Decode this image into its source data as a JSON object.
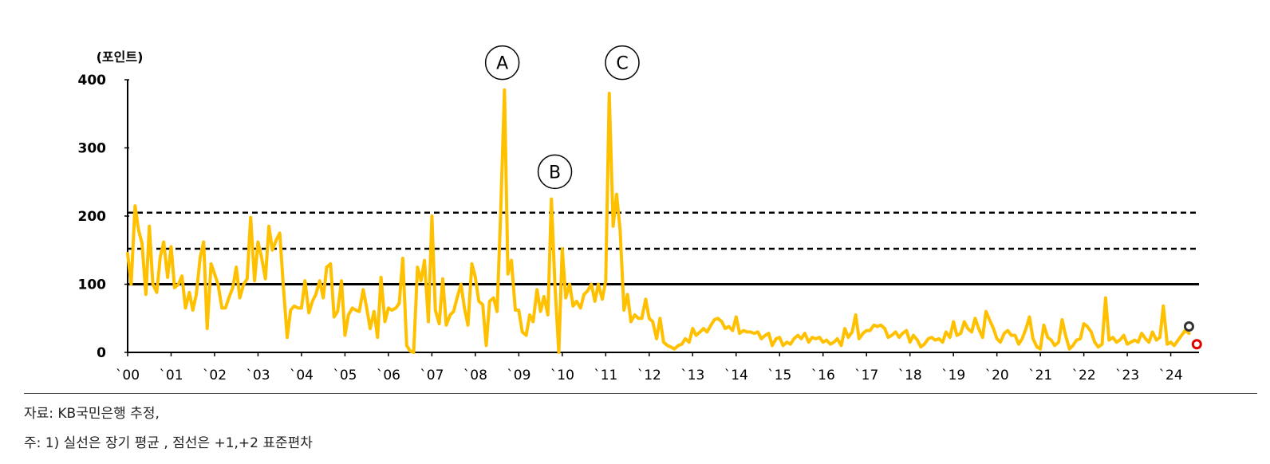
{
  "chart_data": {
    "type": "line",
    "unit_label": "(포인트)",
    "ylim": [
      0,
      400
    ],
    "yticks": [
      "0",
      "100",
      "200",
      "300",
      "400"
    ],
    "x_tick_labels": [
      "`00",
      "`01",
      "`02",
      "`03",
      "`04",
      "`05",
      "`06",
      "`07",
      "`08",
      "`09",
      "`10",
      "`11",
      "`12",
      "`13",
      "`14",
      "`15",
      "`16",
      "`17",
      "`18",
      "`19",
      "`20",
      "`21",
      "`22",
      "`23",
      "`24"
    ],
    "x_range": [
      2000.0,
      2024.65
    ],
    "reference_lines": [
      {
        "type": "solid",
        "value": 100
      },
      {
        "type": "dashed",
        "value": 152
      },
      {
        "type": "dashed",
        "value": 205
      }
    ],
    "series": [
      {
        "color": "#FFC000",
        "points": [
          [
            2000.0,
            145
          ],
          [
            2000.08,
            100
          ],
          [
            2000.17,
            215
          ],
          [
            2000.25,
            180
          ],
          [
            2000.33,
            160
          ],
          [
            2000.42,
            85
          ],
          [
            2000.5,
            185
          ],
          [
            2000.58,
            100
          ],
          [
            2000.67,
            88
          ],
          [
            2000.75,
            140
          ],
          [
            2000.83,
            162
          ],
          [
            2000.92,
            110
          ],
          [
            2001.0,
            155
          ],
          [
            2001.08,
            95
          ],
          [
            2001.17,
            100
          ],
          [
            2001.25,
            112
          ],
          [
            2001.33,
            65
          ],
          [
            2001.42,
            88
          ],
          [
            2001.5,
            62
          ],
          [
            2001.58,
            85
          ],
          [
            2001.67,
            140
          ],
          [
            2001.75,
            162
          ],
          [
            2001.83,
            35
          ],
          [
            2001.92,
            130
          ],
          [
            2002.0,
            115
          ],
          [
            2002.08,
            100
          ],
          [
            2002.17,
            65
          ],
          [
            2002.25,
            65
          ],
          [
            2002.33,
            80
          ],
          [
            2002.42,
            95
          ],
          [
            2002.5,
            125
          ],
          [
            2002.58,
            80
          ],
          [
            2002.67,
            100
          ],
          [
            2002.75,
            108
          ],
          [
            2002.83,
            198
          ],
          [
            2002.92,
            105
          ],
          [
            2003.0,
            162
          ],
          [
            2003.08,
            140
          ],
          [
            2003.17,
            108
          ],
          [
            2003.25,
            185
          ],
          [
            2003.33,
            150
          ],
          [
            2003.42,
            165
          ],
          [
            2003.5,
            175
          ],
          [
            2003.58,
            100
          ],
          [
            2003.67,
            22
          ],
          [
            2003.75,
            62
          ],
          [
            2003.83,
            68
          ],
          [
            2003.92,
            65
          ],
          [
            2004.0,
            65
          ],
          [
            2004.08,
            105
          ],
          [
            2004.17,
            58
          ],
          [
            2004.25,
            75
          ],
          [
            2004.33,
            85
          ],
          [
            2004.42,
            105
          ],
          [
            2004.5,
            80
          ],
          [
            2004.58,
            125
          ],
          [
            2004.67,
            130
          ],
          [
            2004.75,
            52
          ],
          [
            2004.83,
            60
          ],
          [
            2004.92,
            105
          ],
          [
            2005.0,
            25
          ],
          [
            2005.08,
            55
          ],
          [
            2005.17,
            65
          ],
          [
            2005.25,
            62
          ],
          [
            2005.33,
            60
          ],
          [
            2005.42,
            92
          ],
          [
            2005.5,
            65
          ],
          [
            2005.58,
            35
          ],
          [
            2005.67,
            60
          ],
          [
            2005.75,
            22
          ],
          [
            2005.83,
            110
          ],
          [
            2005.92,
            45
          ],
          [
            2006.0,
            65
          ],
          [
            2006.08,
            62
          ],
          [
            2006.17,
            65
          ],
          [
            2006.25,
            72
          ],
          [
            2006.33,
            138
          ],
          [
            2006.42,
            10
          ],
          [
            2006.5,
            2
          ],
          [
            2006.58,
            0
          ],
          [
            2006.67,
            125
          ],
          [
            2006.75,
            105
          ],
          [
            2006.83,
            135
          ],
          [
            2006.92,
            45
          ],
          [
            2007.0,
            200
          ],
          [
            2007.08,
            62
          ],
          [
            2007.17,
            42
          ],
          [
            2007.25,
            108
          ],
          [
            2007.33,
            40
          ],
          [
            2007.42,
            55
          ],
          [
            2007.5,
            60
          ],
          [
            2007.58,
            80
          ],
          [
            2007.67,
            100
          ],
          [
            2007.75,
            65
          ],
          [
            2007.83,
            40
          ],
          [
            2007.92,
            130
          ],
          [
            2008.0,
            110
          ],
          [
            2008.08,
            75
          ],
          [
            2008.17,
            70
          ],
          [
            2008.25,
            10
          ],
          [
            2008.33,
            75
          ],
          [
            2008.42,
            80
          ],
          [
            2008.5,
            60
          ],
          [
            2008.58,
            200
          ],
          [
            2008.67,
            385
          ],
          [
            2008.75,
            115
          ],
          [
            2008.83,
            135
          ],
          [
            2008.92,
            62
          ],
          [
            2009.0,
            62
          ],
          [
            2009.08,
            30
          ],
          [
            2009.17,
            25
          ],
          [
            2009.25,
            55
          ],
          [
            2009.33,
            45
          ],
          [
            2009.42,
            92
          ],
          [
            2009.5,
            60
          ],
          [
            2009.58,
            82
          ],
          [
            2009.67,
            55
          ],
          [
            2009.75,
            225
          ],
          [
            2009.83,
            100
          ],
          [
            2009.92,
            0
          ],
          [
            2010.0,
            152
          ],
          [
            2010.08,
            80
          ],
          [
            2010.17,
            100
          ],
          [
            2010.25,
            68
          ],
          [
            2010.33,
            75
          ],
          [
            2010.42,
            65
          ],
          [
            2010.5,
            85
          ],
          [
            2010.58,
            90
          ],
          [
            2010.67,
            100
          ],
          [
            2010.75,
            75
          ],
          [
            2010.83,
            100
          ],
          [
            2010.92,
            78
          ],
          [
            2011.0,
            105
          ],
          [
            2011.08,
            380
          ],
          [
            2011.17,
            185
          ],
          [
            2011.25,
            232
          ],
          [
            2011.33,
            180
          ],
          [
            2011.42,
            62
          ],
          [
            2011.5,
            85
          ],
          [
            2011.58,
            45
          ],
          [
            2011.67,
            55
          ],
          [
            2011.75,
            50
          ],
          [
            2011.83,
            50
          ],
          [
            2011.92,
            78
          ],
          [
            2012.0,
            50
          ],
          [
            2012.08,
            45
          ],
          [
            2012.17,
            20
          ],
          [
            2012.25,
            50
          ],
          [
            2012.33,
            15
          ],
          [
            2012.42,
            10
          ],
          [
            2012.5,
            8
          ],
          [
            2012.58,
            5
          ],
          [
            2012.67,
            10
          ],
          [
            2012.75,
            12
          ],
          [
            2012.83,
            20
          ],
          [
            2012.92,
            15
          ],
          [
            2013.0,
            35
          ],
          [
            2013.08,
            25
          ],
          [
            2013.17,
            30
          ],
          [
            2013.25,
            35
          ],
          [
            2013.33,
            30
          ],
          [
            2013.42,
            40
          ],
          [
            2013.5,
            48
          ],
          [
            2013.58,
            50
          ],
          [
            2013.67,
            45
          ],
          [
            2013.75,
            35
          ],
          [
            2013.83,
            38
          ],
          [
            2013.92,
            32
          ],
          [
            2014.0,
            52
          ],
          [
            2014.08,
            28
          ],
          [
            2014.17,
            32
          ],
          [
            2014.25,
            30
          ],
          [
            2014.33,
            30
          ],
          [
            2014.42,
            28
          ],
          [
            2014.5,
            30
          ],
          [
            2014.58,
            20
          ],
          [
            2014.67,
            25
          ],
          [
            2014.75,
            28
          ],
          [
            2014.83,
            10
          ],
          [
            2014.92,
            20
          ],
          [
            2015.0,
            22
          ],
          [
            2015.08,
            10
          ],
          [
            2015.17,
            15
          ],
          [
            2015.25,
            12
          ],
          [
            2015.33,
            20
          ],
          [
            2015.42,
            25
          ],
          [
            2015.5,
            20
          ],
          [
            2015.58,
            28
          ],
          [
            2015.67,
            15
          ],
          [
            2015.75,
            22
          ],
          [
            2015.83,
            20
          ],
          [
            2015.92,
            22
          ],
          [
            2016.0,
            15
          ],
          [
            2016.08,
            18
          ],
          [
            2016.17,
            12
          ],
          [
            2016.25,
            15
          ],
          [
            2016.33,
            20
          ],
          [
            2016.42,
            10
          ],
          [
            2016.5,
            35
          ],
          [
            2016.58,
            22
          ],
          [
            2016.67,
            30
          ],
          [
            2016.75,
            55
          ],
          [
            2016.83,
            20
          ],
          [
            2016.92,
            28
          ],
          [
            2017.0,
            32
          ],
          [
            2017.08,
            32
          ],
          [
            2017.17,
            40
          ],
          [
            2017.25,
            38
          ],
          [
            2017.33,
            40
          ],
          [
            2017.42,
            35
          ],
          [
            2017.5,
            22
          ],
          [
            2017.58,
            25
          ],
          [
            2017.67,
            30
          ],
          [
            2017.75,
            22
          ],
          [
            2017.83,
            28
          ],
          [
            2017.92,
            32
          ],
          [
            2018.0,
            15
          ],
          [
            2018.08,
            25
          ],
          [
            2018.17,
            18
          ],
          [
            2018.25,
            8
          ],
          [
            2018.33,
            12
          ],
          [
            2018.42,
            20
          ],
          [
            2018.5,
            22
          ],
          [
            2018.58,
            18
          ],
          [
            2018.67,
            20
          ],
          [
            2018.75,
            15
          ],
          [
            2018.83,
            30
          ],
          [
            2018.92,
            22
          ],
          [
            2019.0,
            45
          ],
          [
            2019.08,
            25
          ],
          [
            2019.17,
            28
          ],
          [
            2019.25,
            45
          ],
          [
            2019.33,
            35
          ],
          [
            2019.42,
            30
          ],
          [
            2019.5,
            50
          ],
          [
            2019.58,
            35
          ],
          [
            2019.67,
            22
          ],
          [
            2019.75,
            60
          ],
          [
            2019.83,
            48
          ],
          [
            2019.92,
            35
          ],
          [
            2020.0,
            20
          ],
          [
            2020.08,
            15
          ],
          [
            2020.17,
            28
          ],
          [
            2020.25,
            32
          ],
          [
            2020.33,
            25
          ],
          [
            2020.42,
            25
          ],
          [
            2020.5,
            12
          ],
          [
            2020.58,
            20
          ],
          [
            2020.67,
            35
          ],
          [
            2020.75,
            52
          ],
          [
            2020.83,
            20
          ],
          [
            2020.92,
            8
          ],
          [
            2021.0,
            5
          ],
          [
            2021.08,
            40
          ],
          [
            2021.17,
            22
          ],
          [
            2021.25,
            18
          ],
          [
            2021.33,
            10
          ],
          [
            2021.42,
            15
          ],
          [
            2021.5,
            48
          ],
          [
            2021.58,
            25
          ],
          [
            2021.67,
            5
          ],
          [
            2021.75,
            10
          ],
          [
            2021.83,
            18
          ],
          [
            2021.92,
            20
          ],
          [
            2022.0,
            42
          ],
          [
            2022.08,
            38
          ],
          [
            2022.17,
            30
          ],
          [
            2022.25,
            15
          ],
          [
            2022.33,
            8
          ],
          [
            2022.42,
            12
          ],
          [
            2022.5,
            80
          ],
          [
            2022.58,
            18
          ],
          [
            2022.67,
            22
          ],
          [
            2022.75,
            15
          ],
          [
            2022.83,
            18
          ],
          [
            2022.92,
            25
          ],
          [
            2023.0,
            12
          ],
          [
            2023.08,
            15
          ],
          [
            2023.17,
            18
          ],
          [
            2023.25,
            15
          ],
          [
            2023.33,
            28
          ],
          [
            2023.42,
            20
          ],
          [
            2023.5,
            15
          ],
          [
            2023.58,
            30
          ],
          [
            2023.67,
            18
          ],
          [
            2023.75,
            22
          ],
          [
            2023.83,
            68
          ],
          [
            2023.92,
            12
          ],
          [
            2024.0,
            15
          ],
          [
            2024.08,
            10
          ],
          [
            2024.17,
            18
          ],
          [
            2024.25,
            25
          ],
          [
            2024.33,
            32
          ],
          [
            2024.42,
            28
          ]
        ]
      }
    ],
    "markers": [
      {
        "x": 2024.42,
        "y": 38,
        "color": "#333333"
      },
      {
        "x": 2024.6,
        "y": 12,
        "color": "#E00000"
      }
    ],
    "annotations": [
      {
        "text": "A",
        "x": 2008.62,
        "y": 425
      },
      {
        "text": "B",
        "x": 2009.83,
        "y": 265
      },
      {
        "text": "C",
        "x": 2011.38,
        "y": 425
      }
    ]
  },
  "notes": {
    "source": "자료: KB국민은행 추정,",
    "footnote": "주: 1) 실선은 장기 평균 , 점선은 +1,+2 표준편차"
  }
}
